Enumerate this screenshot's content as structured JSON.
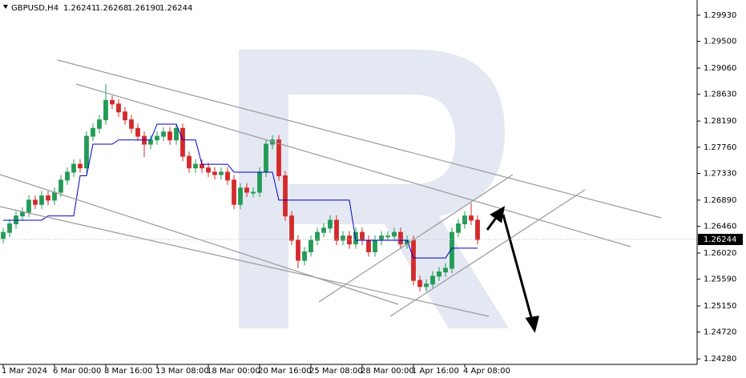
{
  "chart_data": {
    "type": "candlestick",
    "header": {
      "symbol": "GBPUSD,H4",
      "quote": [
        "1.26241",
        "1.26268",
        "1.26190",
        "1.26244"
      ]
    },
    "xlim": [
      -0.5,
      108.25
    ],
    "xticks": [
      {
        "value": 0,
        "label": "1 Mar 2024"
      },
      {
        "value": 8,
        "label": "6 Mar 00:00"
      },
      {
        "value": 16,
        "label": "8 Mar 16:00"
      },
      {
        "value": 24,
        "label": "13 Mar 08:00"
      },
      {
        "value": 32,
        "label": "18 Mar 00:00"
      },
      {
        "value": 40,
        "label": "20 Mar 16:00"
      },
      {
        "value": 48,
        "label": "25 Mar 08:00"
      },
      {
        "value": 56,
        "label": "28 Mar 00:00"
      },
      {
        "value": 64,
        "label": "1 Apr 16:00"
      },
      {
        "value": 72,
        "label": "4 Apr 08:00"
      }
    ],
    "ylim": [
      1.2419,
      1.3018
    ],
    "yticks": [
      {
        "value": 1.2993,
        "label": "1.29930"
      },
      {
        "value": 1.295,
        "label": "1.29500"
      },
      {
        "value": 1.2906,
        "label": "1.29060"
      },
      {
        "value": 1.2863,
        "label": "1.28630"
      },
      {
        "value": 1.2819,
        "label": "1.28190"
      },
      {
        "value": 1.2776,
        "label": "1.27760"
      },
      {
        "value": 1.2733,
        "label": "1.27330"
      },
      {
        "value": 1.2689,
        "label": "1.26890"
      },
      {
        "value": 1.2646,
        "label": "1.26460"
      },
      {
        "value": 1.2602,
        "label": "1.26020"
      },
      {
        "value": 1.2559,
        "label": "1.25590"
      },
      {
        "value": 1.2515,
        "label": "1.25150"
      },
      {
        "value": 1.2472,
        "label": "1.24720"
      },
      {
        "value": 1.2428,
        "label": "1.24280"
      }
    ],
    "price_marker": {
      "value": 1.26244,
      "label": "1.26244"
    },
    "grid": false,
    "up_color": "#239b56",
    "down_color": "#d42a2a",
    "candles": {
      "open": [
        1.2626,
        1.2636,
        1.265,
        1.2663,
        1.2669,
        1.2689,
        1.2682,
        1.2696,
        1.2689,
        1.2702,
        1.2722,
        1.2735,
        1.2748,
        1.2742,
        1.2794,
        1.2807,
        1.2821,
        1.2853,
        1.2847,
        1.2834,
        1.2821,
        1.2807,
        1.2794,
        1.2781,
        1.2788,
        1.2794,
        1.2801,
        1.2788,
        1.2807,
        1.2761,
        1.2742,
        1.2748,
        1.2742,
        1.2735,
        1.2731,
        1.2735,
        1.2722,
        1.2682,
        1.2709,
        1.2702,
        1.2702,
        1.2735,
        1.2781,
        1.2788,
        1.2729,
        1.2663,
        1.2623,
        1.259,
        1.2604,
        1.2623,
        1.2636,
        1.2643,
        1.2656,
        1.2623,
        1.263,
        1.2617,
        1.2636,
        1.2623,
        1.2604,
        1.2623,
        1.263,
        1.263,
        1.2636,
        1.2617,
        1.2623,
        1.2557,
        1.2547,
        1.2551,
        1.2564,
        1.2571,
        1.2577,
        1.2636,
        1.265,
        1.2663,
        1.2656
      ],
      "high": [
        1.2644,
        1.2658,
        1.2671,
        1.2677,
        1.2697,
        1.2697,
        1.2704,
        1.2704,
        1.271,
        1.273,
        1.2743,
        1.2756,
        1.2756,
        1.2802,
        1.2815,
        1.2829,
        1.288,
        1.2861,
        1.2855,
        1.2842,
        1.2829,
        1.2815,
        1.2802,
        1.2796,
        1.2802,
        1.2809,
        1.2809,
        1.2815,
        1.2815,
        1.2769,
        1.2756,
        1.2756,
        1.275,
        1.2743,
        1.2743,
        1.2743,
        1.273,
        1.2717,
        1.2717,
        1.271,
        1.2743,
        1.2789,
        1.2796,
        1.2796,
        1.2737,
        1.2671,
        1.2631,
        1.2612,
        1.2631,
        1.2644,
        1.2651,
        1.2664,
        1.2664,
        1.2638,
        1.2638,
        1.2644,
        1.2644,
        1.2631,
        1.2631,
        1.2638,
        1.2638,
        1.2644,
        1.2644,
        1.2631,
        1.2631,
        1.2565,
        1.2559,
        1.2572,
        1.2579,
        1.2585,
        1.2644,
        1.2658,
        1.2671,
        1.2684,
        1.2664
      ],
      "low": [
        1.2618,
        1.2628,
        1.2642,
        1.2655,
        1.2661,
        1.2674,
        1.2674,
        1.2681,
        1.2681,
        1.2694,
        1.2714,
        1.2727,
        1.2734,
        1.2734,
        1.2786,
        1.2799,
        1.2813,
        1.2839,
        1.2826,
        1.2813,
        1.2799,
        1.2786,
        1.276,
        1.2773,
        1.278,
        1.2786,
        1.278,
        1.278,
        1.2753,
        1.2734,
        1.2734,
        1.2734,
        1.2727,
        1.2723,
        1.2723,
        1.2714,
        1.2674,
        1.2674,
        1.2694,
        1.2694,
        1.2694,
        1.2727,
        1.2773,
        1.2721,
        1.2655,
        1.2615,
        1.2577,
        1.2582,
        1.2596,
        1.2615,
        1.2628,
        1.2635,
        1.2615,
        1.2615,
        1.2609,
        1.2609,
        1.2615,
        1.2596,
        1.2596,
        1.2615,
        1.2622,
        1.2622,
        1.2609,
        1.2609,
        1.2549,
        1.2539,
        1.2539,
        1.2543,
        1.2556,
        1.2563,
        1.2569,
        1.2628,
        1.2642,
        1.2648,
        1.2616
      ],
      "close": [
        1.2636,
        1.265,
        1.2663,
        1.2669,
        1.2689,
        1.2682,
        1.2696,
        1.2689,
        1.2702,
        1.2722,
        1.2735,
        1.2748,
        1.2742,
        1.2794,
        1.2807,
        1.2821,
        1.2853,
        1.2847,
        1.2834,
        1.2821,
        1.2807,
        1.2794,
        1.2781,
        1.2788,
        1.2794,
        1.2801,
        1.2788,
        1.2807,
        1.2761,
        1.2742,
        1.2748,
        1.2742,
        1.2735,
        1.2731,
        1.2735,
        1.2722,
        1.2682,
        1.2709,
        1.2702,
        1.2702,
        1.2735,
        1.2781,
        1.2788,
        1.2729,
        1.2663,
        1.2623,
        1.259,
        1.2604,
        1.2623,
        1.2636,
        1.2643,
        1.2656,
        1.2623,
        1.263,
        1.2617,
        1.2636,
        1.2623,
        1.2604,
        1.2623,
        1.263,
        1.263,
        1.2636,
        1.2617,
        1.2623,
        1.2557,
        1.2547,
        1.2551,
        1.2564,
        1.2571,
        1.2577,
        1.2636,
        1.265,
        1.2663,
        1.2656,
        1.2624
      ]
    },
    "lines": [
      {
        "color": "#0000cc",
        "values": [
          1.2656,
          1.2656,
          1.2656,
          1.2656,
          1.2656,
          1.2656,
          1.2656,
          1.2663,
          1.2663,
          1.2663,
          1.2663,
          1.2663,
          1.2729,
          1.2729,
          1.2781,
          1.2781,
          1.2781,
          1.2781,
          1.2788,
          1.2788,
          1.2788,
          1.2788,
          1.2788,
          1.2788,
          1.2814,
          1.2814,
          1.2814,
          1.2814,
          1.2788,
          1.2788,
          1.2788,
          1.2748,
          1.2748,
          1.2748,
          1.2748,
          1.2748,
          1.2735,
          1.2735,
          1.2735,
          1.2735,
          1.2735,
          1.2735,
          1.2735,
          1.2689,
          1.2689,
          1.2689,
          1.2689,
          1.2689,
          1.2689,
          1.2689,
          1.2689,
          1.2689,
          1.2689,
          1.2689,
          1.2689,
          1.2623,
          1.2623,
          1.2623,
          1.2623,
          1.2623,
          1.2623,
          1.2623,
          1.2623,
          1.2623,
          1.2594,
          1.2594,
          1.2594,
          1.2594,
          1.2594,
          1.2594,
          1.261,
          1.261,
          1.261,
          1.261,
          1.261
        ]
      }
    ]
  }
}
